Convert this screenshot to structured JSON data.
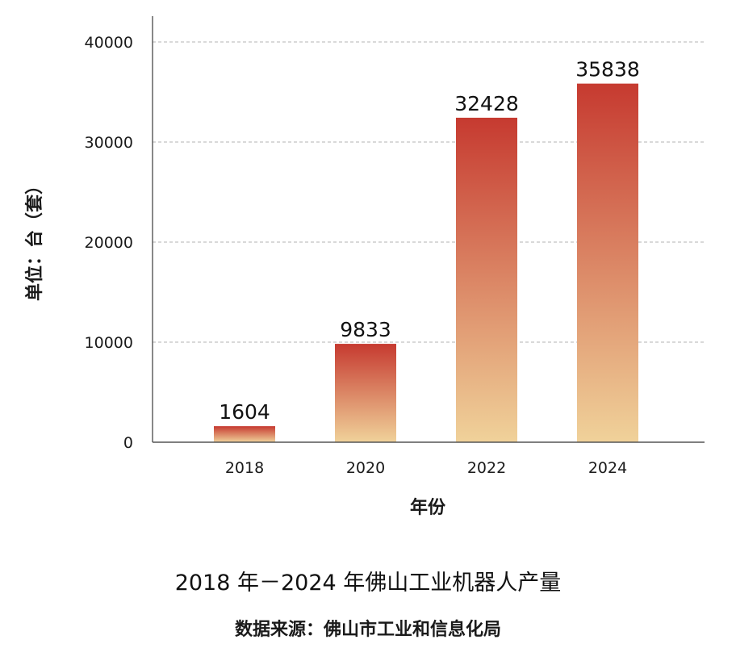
{
  "chart_data": {
    "type": "bar",
    "title": "2018 年－2024 年佛山工业机器人产量",
    "source": "数据来源：佛山市工业和信息化局",
    "xlabel": "年份",
    "ylabel": "单位：台（套）",
    "categories": [
      "2018",
      "2020",
      "2022",
      "2024"
    ],
    "values": [
      1604,
      9833,
      32428,
      35838
    ],
    "data_labels": [
      "1604",
      "9833",
      "32428",
      "35838"
    ],
    "ylim": [
      0,
      40000
    ],
    "yticks": [
      0,
      10000,
      20000,
      30000,
      40000
    ],
    "ytick_labels": [
      "0",
      "10000",
      "20000",
      "30000",
      "40000"
    ],
    "grid": "horizontal dashed",
    "legend": "none",
    "colors": {
      "bar_top": "#c63a30",
      "bar_bottom": "#f0d29a",
      "axis": "#555555",
      "grid": "#b3b3b3"
    }
  }
}
